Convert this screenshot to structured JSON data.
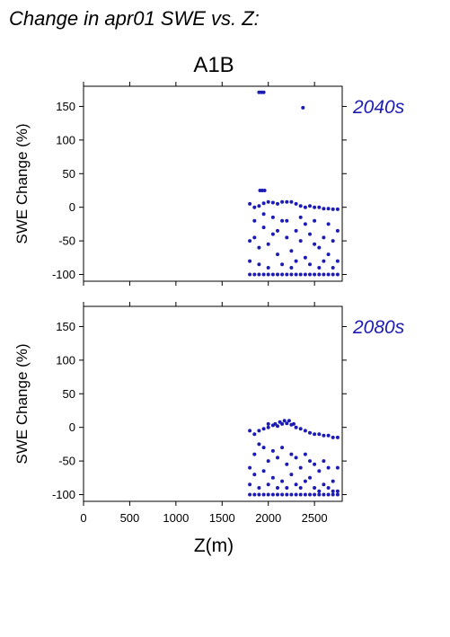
{
  "figure": {
    "title": "Change in apr01 SWE vs. Z:",
    "scenario": "A1B",
    "xlabel": "Z(m)",
    "colors": {
      "points": "#1c1cb4",
      "period_label": "#1c1cb4",
      "axes": "#000000"
    }
  },
  "chart_data": [
    {
      "type": "scatter",
      "period_label": "2040s",
      "ylabel": "SWE Change (%)",
      "xlim": [
        0,
        2800
      ],
      "ylim": [
        -110,
        180
      ],
      "xticks": [
        0,
        500,
        1000,
        1500,
        2000,
        2500
      ],
      "yticks": [
        -100,
        -50,
        0,
        50,
        100,
        150
      ],
      "show_x_tick_labels": false,
      "grid": false,
      "series": [
        {
          "points": [
            [
              1900,
              171
            ],
            [
              1925,
              171
            ],
            [
              1950,
              171
            ],
            [
              2375,
              148
            ],
            [
              1910,
              25
            ],
            [
              1935,
              25
            ],
            [
              1960,
              25
            ],
            [
              1800,
              5
            ],
            [
              1850,
              0
            ],
            [
              1900,
              2
            ],
            [
              1950,
              6
            ],
            [
              2000,
              8
            ],
            [
              2050,
              7
            ],
            [
              2100,
              5
            ],
            [
              2150,
              8
            ],
            [
              2200,
              8
            ],
            [
              2250,
              8
            ],
            [
              2300,
              5
            ],
            [
              2350,
              2
            ],
            [
              2400,
              0
            ],
            [
              2450,
              2
            ],
            [
              2500,
              0
            ],
            [
              2550,
              0
            ],
            [
              2600,
              -2
            ],
            [
              2650,
              -2
            ],
            [
              2700,
              -3
            ],
            [
              2750,
              -3
            ],
            [
              1800,
              -100
            ],
            [
              1850,
              -100
            ],
            [
              1900,
              -100
            ],
            [
              1950,
              -100
            ],
            [
              2000,
              -100
            ],
            [
              2050,
              -100
            ],
            [
              2100,
              -100
            ],
            [
              2150,
              -100
            ],
            [
              2200,
              -100
            ],
            [
              2250,
              -100
            ],
            [
              2300,
              -100
            ],
            [
              2350,
              -100
            ],
            [
              2400,
              -100
            ],
            [
              2450,
              -100
            ],
            [
              2500,
              -100
            ],
            [
              2550,
              -100
            ],
            [
              2600,
              -100
            ],
            [
              2650,
              -100
            ],
            [
              2700,
              -100
            ],
            [
              2750,
              -100
            ],
            [
              1800,
              -50
            ],
            [
              1850,
              -45
            ],
            [
              1900,
              -60
            ],
            [
              1950,
              -30
            ],
            [
              2000,
              -55
            ],
            [
              2050,
              -40
            ],
            [
              2100,
              -70
            ],
            [
              2150,
              -20
            ],
            [
              2200,
              -45
            ],
            [
              2250,
              -65
            ],
            [
              2300,
              -35
            ],
            [
              2350,
              -50
            ],
            [
              2400,
              -25
            ],
            [
              2450,
              -40
            ],
            [
              2500,
              -55
            ],
            [
              2550,
              -60
            ],
            [
              2600,
              -45
            ],
            [
              2650,
              -70
            ],
            [
              2700,
              -50
            ],
            [
              2750,
              -35
            ],
            [
              1800,
              -80
            ],
            [
              1850,
              -20
            ],
            [
              1900,
              -85
            ],
            [
              1950,
              -10
            ],
            [
              2000,
              -90
            ],
            [
              2050,
              -15
            ],
            [
              2100,
              -35
            ],
            [
              2150,
              -85
            ],
            [
              2200,
              -20
            ],
            [
              2250,
              -90
            ],
            [
              2300,
              -80
            ],
            [
              2350,
              -15
            ],
            [
              2400,
              -75
            ],
            [
              2450,
              -85
            ],
            [
              2500,
              -20
            ],
            [
              2550,
              -90
            ],
            [
              2600,
              -80
            ],
            [
              2650,
              -25
            ],
            [
              2700,
              -90
            ],
            [
              2750,
              -80
            ]
          ]
        }
      ]
    },
    {
      "type": "scatter",
      "period_label": "2080s",
      "ylabel": "SWE Change (%)",
      "xlim": [
        0,
        2800
      ],
      "ylim": [
        -110,
        180
      ],
      "xticks": [
        0,
        500,
        1000,
        1500,
        2000,
        2500
      ],
      "yticks": [
        -100,
        -50,
        0,
        50,
        100,
        150
      ],
      "show_x_tick_labels": true,
      "grid": false,
      "series": [
        {
          "points": [
            [
              2075,
              5
            ],
            [
              2125,
              8
            ],
            [
              2175,
              10
            ],
            [
              2225,
              10
            ],
            [
              2275,
              5
            ],
            [
              2000,
              5
            ],
            [
              2050,
              3
            ],
            [
              1800,
              -5
            ],
            [
              1850,
              -10
            ],
            [
              1900,
              -5
            ],
            [
              1950,
              -2
            ],
            [
              2000,
              0
            ],
            [
              2100,
              2
            ],
            [
              2150,
              5
            ],
            [
              2200,
              6
            ],
            [
              2250,
              4
            ],
            [
              2300,
              0
            ],
            [
              2350,
              -2
            ],
            [
              2400,
              -5
            ],
            [
              2450,
              -8
            ],
            [
              2500,
              -10
            ],
            [
              2550,
              -10
            ],
            [
              2600,
              -12
            ],
            [
              2650,
              -12
            ],
            [
              2700,
              -15
            ],
            [
              2750,
              -15
            ],
            [
              1800,
              -100
            ],
            [
              1850,
              -100
            ],
            [
              1900,
              -100
            ],
            [
              1950,
              -100
            ],
            [
              2000,
              -100
            ],
            [
              2050,
              -100
            ],
            [
              2100,
              -100
            ],
            [
              2150,
              -100
            ],
            [
              2200,
              -100
            ],
            [
              2250,
              -100
            ],
            [
              2300,
              -100
            ],
            [
              2350,
              -100
            ],
            [
              2400,
              -100
            ],
            [
              2450,
              -100
            ],
            [
              2500,
              -100
            ],
            [
              2550,
              -100
            ],
            [
              2600,
              -100
            ],
            [
              2650,
              -100
            ],
            [
              2700,
              -100
            ],
            [
              2750,
              -100
            ],
            [
              1800,
              -60
            ],
            [
              1850,
              -70
            ],
            [
              1900,
              -25
            ],
            [
              1950,
              -65
            ],
            [
              2000,
              -50
            ],
            [
              2050,
              -75
            ],
            [
              2100,
              -45
            ],
            [
              2150,
              -80
            ],
            [
              2200,
              -55
            ],
            [
              2250,
              -70
            ],
            [
              2300,
              -85
            ],
            [
              2350,
              -60
            ],
            [
              2400,
              -80
            ],
            [
              2450,
              -75
            ],
            [
              2500,
              -90
            ],
            [
              2550,
              -65
            ],
            [
              2600,
              -85
            ],
            [
              2650,
              -90
            ],
            [
              2700,
              -80
            ],
            [
              2750,
              -95
            ],
            [
              1800,
              -85
            ],
            [
              1850,
              -40
            ],
            [
              1900,
              -90
            ],
            [
              1950,
              -30
            ],
            [
              2000,
              -85
            ],
            [
              2050,
              -35
            ],
            [
              2100,
              -90
            ],
            [
              2150,
              -30
            ],
            [
              2200,
              -90
            ],
            [
              2250,
              -40
            ],
            [
              2300,
              -45
            ],
            [
              2350,
              -90
            ],
            [
              2400,
              -40
            ],
            [
              2450,
              -50
            ],
            [
              2500,
              -55
            ],
            [
              2550,
              -95
            ],
            [
              2600,
              -50
            ],
            [
              2650,
              -60
            ],
            [
              2700,
              -95
            ],
            [
              2750,
              -60
            ]
          ]
        }
      ]
    }
  ]
}
